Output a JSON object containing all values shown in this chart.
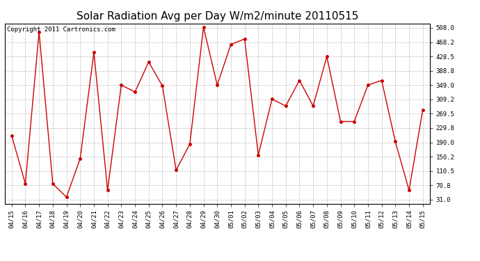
{
  "title": "Solar Radiation Avg per Day W/m2/minute 20110515",
  "copyright_text": "Copyright 2011 Cartronics.com",
  "labels": [
    "04/15",
    "04/16",
    "04/17",
    "04/18",
    "04/19",
    "04/20",
    "04/21",
    "04/22",
    "04/23",
    "04/24",
    "04/25",
    "04/26",
    "04/27",
    "04/28",
    "04/29",
    "04/30",
    "05/01",
    "05/02",
    "05/03",
    "05/04",
    "05/05",
    "05/06",
    "05/07",
    "05/08",
    "05/09",
    "05/10",
    "05/11",
    "05/12",
    "05/13",
    "05/14",
    "05/15"
  ],
  "values": [
    209,
    75,
    497,
    75,
    38,
    145,
    440,
    57,
    349,
    330,
    413,
    347,
    113,
    185,
    510,
    349,
    462,
    477,
    155,
    310,
    291,
    362,
    291,
    428,
    248,
    248,
    349,
    362,
    192,
    57,
    280
  ],
  "line_color": "#cc0000",
  "marker_size": 3,
  "bg_color": "#ffffff",
  "plot_bg_color": "#ffffff",
  "grid_color": "#bbbbbb",
  "ytick_values": [
    31.0,
    70.8,
    110.5,
    150.2,
    190.0,
    229.8,
    269.5,
    309.2,
    349.0,
    388.8,
    428.5,
    468.2,
    508.0
  ],
  "ytick_labels": [
    "31.0",
    "70.8",
    "110.5",
    "150.2",
    "190.0",
    "229.8",
    "269.5",
    "309.2",
    "349.0",
    "388.8",
    "428.5",
    "468.2",
    "508.0"
  ],
  "ylim_min": 20.0,
  "ylim_max": 520.0,
  "title_fontsize": 11,
  "tick_fontsize": 6.5,
  "copyright_fontsize": 6.5
}
